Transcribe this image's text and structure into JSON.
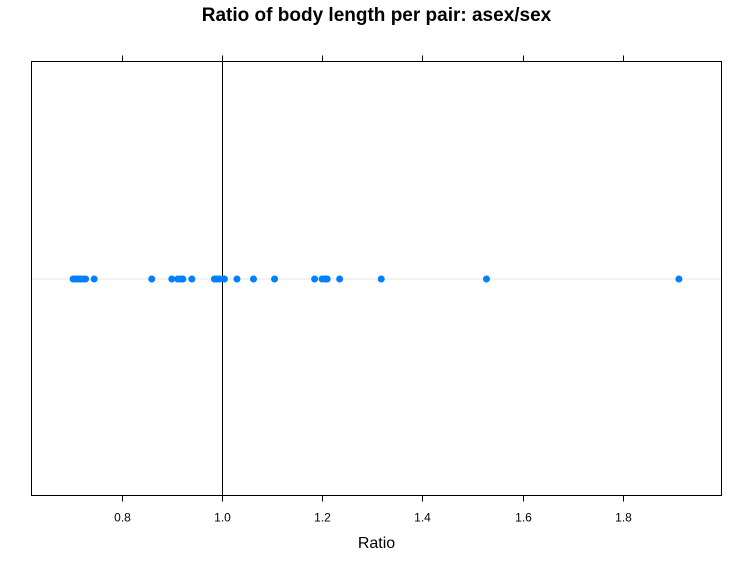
{
  "chart_data": {
    "type": "scatter",
    "title": "Ratio of body length per pair: asex/sex",
    "xlabel": "Ratio",
    "ylabel": "",
    "xlim": [
      0.62,
      1.997
    ],
    "x_ticks": [
      0.8,
      1.0,
      1.2,
      1.4,
      1.6,
      1.8
    ],
    "x_tick_labels": [
      "0.8",
      "1.0",
      "1.2",
      "1.4",
      "1.6",
      "1.8"
    ],
    "reference_line_x": 1.0,
    "grid": false,
    "point_color": "#0080ff",
    "reference_line_color": "#000000",
    "baseline_color": "#e6e6e6",
    "x": [
      0.703,
      0.708,
      0.713,
      0.718,
      0.723,
      0.728,
      0.745,
      0.86,
      0.9,
      0.912,
      0.918,
      0.922,
      0.94,
      0.985,
      0.99,
      0.995,
      1.005,
      1.03,
      1.063,
      1.105,
      1.185,
      1.2,
      1.206,
      1.21,
      1.235,
      1.318,
      1.528,
      1.912
    ]
  }
}
